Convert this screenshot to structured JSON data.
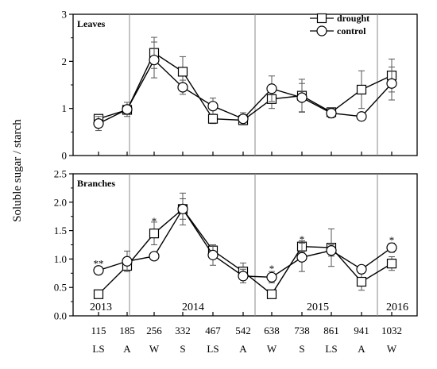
{
  "chart_data": {
    "type": "line",
    "ylabel": "Soluble sugar / starch",
    "x": [
      115,
      185,
      256,
      332,
      467,
      542,
      638,
      738,
      861,
      941,
      1032
    ],
    "season_labels": [
      "LS",
      "A",
      "W",
      "S",
      "LS",
      "A",
      "W",
      "S",
      "LS",
      "A",
      "W"
    ],
    "year_labels": [
      "2013",
      "2014",
      "2015",
      "2016"
    ],
    "legend": [
      "drought",
      "control"
    ],
    "panels": [
      {
        "title": "Leaves",
        "ylim": [
          0,
          3
        ],
        "yticks": [
          "0",
          "1",
          "2",
          "3"
        ],
        "series": [
          {
            "name": "drought",
            "marker": "square",
            "values": [
              0.78,
              0.97,
              2.18,
              1.78,
              0.78,
              0.75,
              1.2,
              1.27,
              0.92,
              1.4,
              1.7
            ],
            "errors": [
              0.08,
              0.08,
              0.33,
              0.32,
              0.1,
              0.1,
              0.2,
              0.35,
              0.08,
              0.4,
              0.35
            ]
          },
          {
            "name": "control",
            "marker": "circle",
            "values": [
              0.68,
              0.98,
              2.03,
              1.45,
              1.05,
              0.78,
              1.42,
              1.23,
              0.9,
              0.83,
              1.53
            ],
            "errors": [
              0.15,
              0.15,
              0.38,
              0.15,
              0.17,
              0.13,
              0.27,
              0.3,
              0.1,
              0.05,
              0.35
            ]
          }
        ],
        "significance": []
      },
      {
        "title": "Branches",
        "ylim": [
          0,
          2.5
        ],
        "yticks": [
          "0.0",
          "0.5",
          "1.0",
          "1.5",
          "2.0",
          "2.5"
        ],
        "series": [
          {
            "name": "drought",
            "marker": "square",
            "values": [
              0.38,
              0.88,
              1.45,
              1.88,
              1.15,
              0.78,
              0.38,
              1.22,
              1.2,
              0.6,
              0.92
            ],
            "errors": [
              0.03,
              0.06,
              0.2,
              0.28,
              0.08,
              0.15,
              0.05,
              0.1,
              0.33,
              0.15,
              0.12
            ]
          },
          {
            "name": "control",
            "marker": "circle",
            "values": [
              0.8,
              0.96,
              1.05,
              1.88,
              1.07,
              0.7,
              0.68,
              1.03,
              1.15,
              0.82,
              1.2
            ],
            "errors": [
              0.03,
              0.18,
              0.04,
              0.18,
              0.18,
              0.12,
              0.1,
              0.25,
              0.1,
              0.06,
              0.08
            ]
          }
        ],
        "significance": [
          {
            "x": 115,
            "y": 0.97,
            "label": "**"
          },
          {
            "x": 256,
            "y": 1.72,
            "label": "*"
          },
          {
            "x": 638,
            "y": 0.88,
            "label": "*"
          },
          {
            "x": 738,
            "y": 1.4,
            "label": "*"
          },
          {
            "x": 1032,
            "y": 1.38,
            "label": "*"
          }
        ]
      }
    ]
  }
}
